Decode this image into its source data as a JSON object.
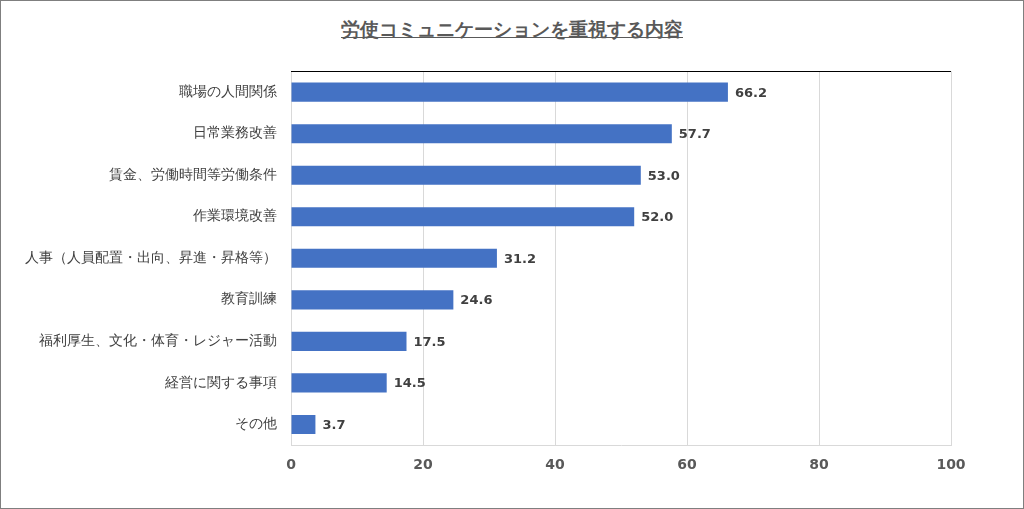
{
  "chart_data": {
    "type": "bar",
    "title": "労使コミュニケーションを重視する内容",
    "orientation": "horizontal",
    "categories": [
      "職場の人間関係",
      "日常業務改善",
      "賃金、労働時間等労働条件",
      "作業環境改善",
      "人事（人員配置・出向、昇進・昇格等）",
      "教育訓練",
      "福利厚生、文化・体育・レジャー活動",
      "経営に関する事項",
      "その他"
    ],
    "values": [
      66.2,
      57.7,
      53.0,
      52.0,
      31.2,
      24.6,
      17.5,
      14.5,
      3.7
    ],
    "value_labels": [
      "66.2",
      "57.7",
      "53.0",
      "52.0",
      "31.2",
      "24.6",
      "17.5",
      "14.5",
      "3.7"
    ],
    "color": "#4472c4",
    "xlim": [
      0,
      100
    ],
    "xticks": [
      0,
      20,
      40,
      60,
      80,
      100
    ],
    "grid": true,
    "data_labels": true
  }
}
